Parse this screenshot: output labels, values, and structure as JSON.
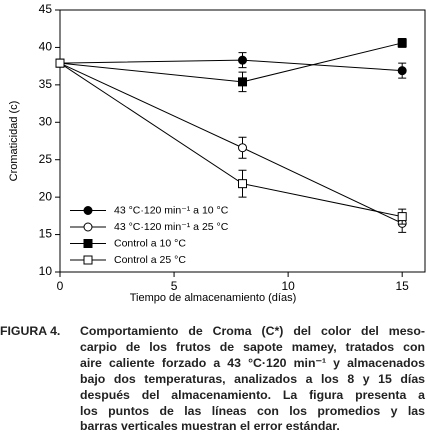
{
  "chart_data": {
    "type": "line",
    "ylabel": "Cromaticidad (c)",
    "xlabel": "Tiempo de almacenamiento (días)",
    "x": [
      0,
      8,
      15
    ],
    "xlim": [
      0,
      16
    ],
    "xticks": [
      0,
      5,
      10,
      15
    ],
    "ylim": [
      10,
      45
    ],
    "yticks": [
      10,
      15,
      20,
      25,
      30,
      35,
      40,
      45
    ],
    "legend": "lower left",
    "series": [
      {
        "name": "43 °C·120 min⁻¹ a 10 °C",
        "color": "#000000",
        "marker": "circle",
        "filled": true,
        "values": [
          37.9,
          38.3,
          36.9
        ],
        "errors": [
          0.4,
          1.0,
          1.0
        ]
      },
      {
        "name": "43 °C·120 min⁻¹ a 25 °C",
        "color": "#000000",
        "marker": "circle",
        "filled": false,
        "values": [
          37.9,
          26.6,
          16.5
        ],
        "errors": [
          0.4,
          1.4,
          1.2
        ]
      },
      {
        "name": "Control a 10 °C",
        "color": "#000000",
        "marker": "square",
        "filled": true,
        "values": [
          37.9,
          35.4,
          40.6
        ],
        "errors": [
          0.4,
          1.3,
          0.6
        ]
      },
      {
        "name": "Control a 25 °C",
        "color": "#000000",
        "marker": "square",
        "filled": false,
        "values": [
          37.9,
          21.8,
          17.4
        ],
        "errors": [
          0.4,
          1.8,
          1.0
        ]
      }
    ]
  },
  "caption": {
    "label": "FIGURA 4.",
    "lines": [
      "Comportamiento de Croma (C*) del color del meso-",
      "carpio de los frutos de sapote mamey, tratados con",
      "aire caliente forzado a 43 °C·120 min⁻¹ y almacenados",
      "bajo dos temperaturas, analizados a los 8 y 15 días",
      "después del almacenamiento. La figura presenta a",
      "los puntos de las líneas con los promedios y las",
      "barras verticales muestran el error estándar."
    ]
  }
}
